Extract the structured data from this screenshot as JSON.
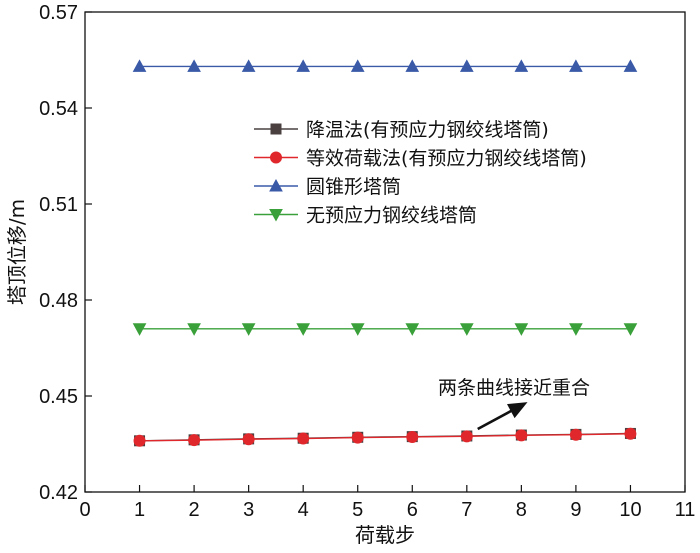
{
  "chart_data": {
    "type": "line",
    "xlabel": "荷载步",
    "ylabel": "塔顶位移/m",
    "xlim": [
      0,
      11
    ],
    "ylim": [
      0.42,
      0.57
    ],
    "x_ticks": [
      "0",
      "1",
      "2",
      "3",
      "4",
      "5",
      "6",
      "7",
      "8",
      "9",
      "10",
      "11"
    ],
    "y_ticks": [
      "0.42",
      "0.45",
      "0.48",
      "0.51",
      "0.54",
      "0.57"
    ],
    "x": [
      1,
      2,
      3,
      4,
      5,
      6,
      7,
      8,
      9,
      10
    ],
    "grid": false,
    "legend_position": "center",
    "series": [
      {
        "name": "降温法(有预应力钢绞线塔筒)",
        "marker": "square",
        "color": "#4a4040",
        "values": [
          0.436,
          0.4363,
          0.4366,
          0.4368,
          0.4371,
          0.4373,
          0.4375,
          0.4378,
          0.438,
          0.4383
        ]
      },
      {
        "name": "等效荷载法(有预应力钢绞线塔筒)",
        "marker": "circle",
        "color": "#e0282c",
        "values": [
          0.436,
          0.4362,
          0.4365,
          0.4367,
          0.437,
          0.4372,
          0.4374,
          0.4377,
          0.4379,
          0.4382
        ]
      },
      {
        "name": "圆锥形塔筒",
        "marker": "triangle-up",
        "color": "#3a5aa8",
        "values": [
          0.553,
          0.553,
          0.553,
          0.553,
          0.553,
          0.553,
          0.553,
          0.553,
          0.553,
          0.553
        ]
      },
      {
        "name": "无预应力钢绞线塔筒",
        "marker": "triangle-down",
        "color": "#3aa03a",
        "values": [
          0.471,
          0.471,
          0.471,
          0.471,
          0.471,
          0.471,
          0.471,
          0.471,
          0.471,
          0.471
        ]
      }
    ],
    "annotations": [
      {
        "text": "两条曲线接近重合",
        "x": 7.2,
        "y": 0.4375
      }
    ]
  }
}
